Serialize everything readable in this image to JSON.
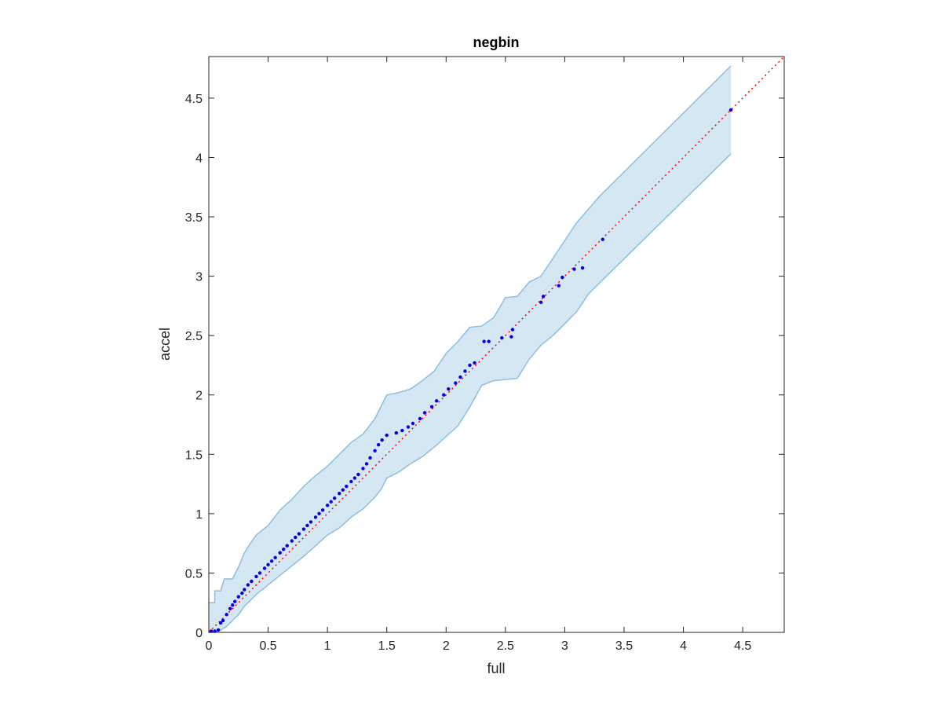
{
  "chart_data": {
    "type": "scatter",
    "title": "negbin",
    "xlabel": "full",
    "ylabel": "accel",
    "xlim": [
      0,
      4.85
    ],
    "ylim": [
      0,
      4.85
    ],
    "xticks": [
      "0",
      "0.5",
      "1",
      "1.5",
      "2",
      "2.5",
      "3",
      "3.5",
      "4",
      "4.5"
    ],
    "yticks": [
      "0",
      "0.5",
      "1",
      "1.5",
      "2",
      "2.5",
      "3",
      "3.5",
      "4",
      "4.5"
    ],
    "grid": false,
    "colors": {
      "points": "#0000ee",
      "reference_line": "#ff0000",
      "band_fill": "#d6e7f4",
      "band_edge": "#8cbfde",
      "axes": "#262626"
    },
    "reference_line": {
      "style": "dotted",
      "from": [
        0,
        0
      ],
      "to": [
        4.85,
        4.85
      ]
    },
    "band": {
      "upper": [
        [
          0,
          0.25
        ],
        [
          0.05,
          0.25
        ],
        [
          0.05,
          0.35
        ],
        [
          0.1,
          0.35
        ],
        [
          0.13,
          0.45
        ],
        [
          0.2,
          0.45
        ],
        [
          0.25,
          0.55
        ],
        [
          0.3,
          0.67
        ],
        [
          0.35,
          0.75
        ],
        [
          0.4,
          0.82
        ],
        [
          0.5,
          0.9
        ],
        [
          0.6,
          1.03
        ],
        [
          0.7,
          1.12
        ],
        [
          0.8,
          1.23
        ],
        [
          0.9,
          1.32
        ],
        [
          1.0,
          1.4
        ],
        [
          1.1,
          1.5
        ],
        [
          1.2,
          1.6
        ],
        [
          1.3,
          1.67
        ],
        [
          1.4,
          1.8
        ],
        [
          1.5,
          2.0
        ],
        [
          1.6,
          2.02
        ],
        [
          1.7,
          2.05
        ],
        [
          1.8,
          2.12
        ],
        [
          1.9,
          2.2
        ],
        [
          2.0,
          2.35
        ],
        [
          2.1,
          2.45
        ],
        [
          2.2,
          2.57
        ],
        [
          2.3,
          2.58
        ],
        [
          2.4,
          2.65
        ],
        [
          2.5,
          2.82
        ],
        [
          2.6,
          2.83
        ],
        [
          2.7,
          2.95
        ],
        [
          2.8,
          3.0
        ],
        [
          2.9,
          3.15
        ],
        [
          3.0,
          3.3
        ],
        [
          3.1,
          3.45
        ],
        [
          3.3,
          3.68
        ],
        [
          4.4,
          4.77
        ]
      ],
      "lower": [
        [
          4.4,
          4.03
        ],
        [
          3.3,
          2.95
        ],
        [
          3.2,
          2.85
        ],
        [
          3.1,
          2.7
        ],
        [
          3.0,
          2.6
        ],
        [
          2.9,
          2.5
        ],
        [
          2.8,
          2.42
        ],
        [
          2.7,
          2.3
        ],
        [
          2.6,
          2.14
        ],
        [
          2.4,
          2.12
        ],
        [
          2.3,
          2.08
        ],
        [
          2.2,
          1.9
        ],
        [
          2.1,
          1.74
        ],
        [
          2.0,
          1.65
        ],
        [
          1.9,
          1.56
        ],
        [
          1.8,
          1.48
        ],
        [
          1.7,
          1.42
        ],
        [
          1.6,
          1.35
        ],
        [
          1.5,
          1.3
        ],
        [
          1.45,
          1.2
        ],
        [
          1.4,
          1.14
        ],
        [
          1.3,
          1.04
        ],
        [
          1.2,
          0.97
        ],
        [
          1.1,
          0.88
        ],
        [
          1.0,
          0.82
        ],
        [
          0.9,
          0.73
        ],
        [
          0.8,
          0.64
        ],
        [
          0.7,
          0.56
        ],
        [
          0.6,
          0.48
        ],
        [
          0.5,
          0.4
        ],
        [
          0.4,
          0.32
        ],
        [
          0.35,
          0.27
        ],
        [
          0.3,
          0.22
        ],
        [
          0.25,
          0.15
        ],
        [
          0.2,
          0.1
        ],
        [
          0.15,
          0.05
        ],
        [
          0.1,
          0.02
        ],
        [
          0.05,
          0.0
        ],
        [
          0,
          0
        ]
      ]
    },
    "series": [
      {
        "x": [
          0.02,
          0.05,
          0.08,
          0.1,
          0.12,
          0.15,
          0.18,
          0.2,
          0.22,
          0.25,
          0.28,
          0.3,
          0.33,
          0.36,
          0.4,
          0.43,
          0.47,
          0.5,
          0.53,
          0.56,
          0.6,
          0.63,
          0.66,
          0.7,
          0.73,
          0.76,
          0.8,
          0.83,
          0.86,
          0.9,
          0.93,
          0.96,
          1.0,
          1.03,
          1.06,
          1.1,
          1.13,
          1.16,
          1.2,
          1.23,
          1.26,
          1.3,
          1.33,
          1.36,
          1.4,
          1.43,
          1.46,
          1.5,
          1.58,
          1.63,
          1.68,
          1.72,
          1.78,
          1.82,
          1.88,
          1.92,
          1.98,
          2.02,
          2.08,
          2.12,
          2.16,
          2.2,
          2.24,
          2.32,
          2.36,
          2.47,
          2.55,
          2.56,
          2.8,
          2.82,
          2.95,
          2.98,
          3.08,
          3.15,
          3.32,
          4.4
        ],
        "y": [
          0.01,
          0.01,
          0.02,
          0.08,
          0.1,
          0.15,
          0.2,
          0.23,
          0.26,
          0.3,
          0.33,
          0.36,
          0.4,
          0.43,
          0.47,
          0.5,
          0.54,
          0.57,
          0.6,
          0.63,
          0.67,
          0.7,
          0.73,
          0.77,
          0.8,
          0.83,
          0.87,
          0.9,
          0.93,
          0.97,
          1.0,
          1.03,
          1.07,
          1.1,
          1.13,
          1.17,
          1.2,
          1.23,
          1.27,
          1.3,
          1.33,
          1.38,
          1.42,
          1.47,
          1.53,
          1.58,
          1.62,
          1.66,
          1.68,
          1.7,
          1.73,
          1.76,
          1.8,
          1.85,
          1.9,
          1.95,
          2.0,
          2.05,
          2.1,
          2.15,
          2.2,
          2.25,
          2.27,
          2.45,
          2.45,
          2.48,
          2.49,
          2.55,
          2.78,
          2.83,
          2.92,
          2.99,
          3.06,
          3.07,
          3.31,
          4.4
        ]
      }
    ]
  }
}
